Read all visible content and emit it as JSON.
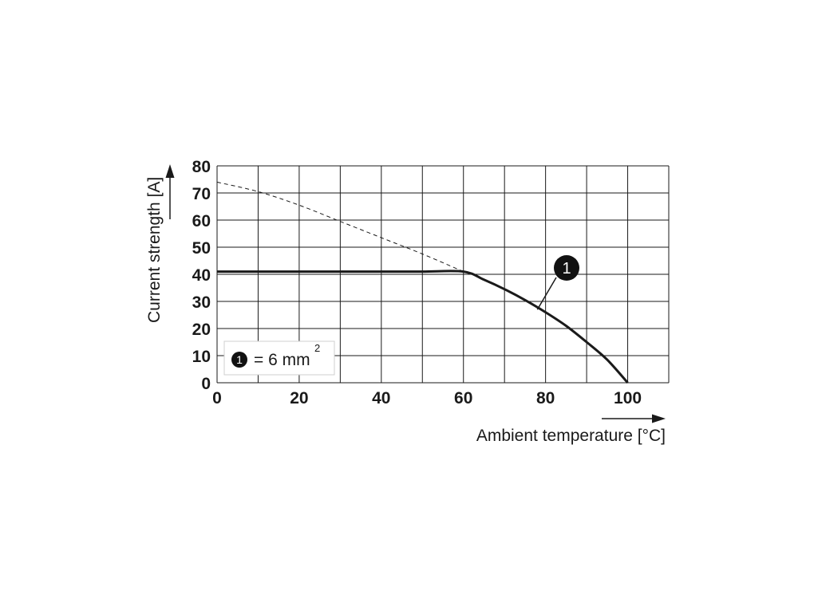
{
  "chart_data": {
    "type": "line",
    "xlabel": "Ambient temperature [°C]",
    "ylabel": "Current strength [A]",
    "xlim": [
      0,
      110
    ],
    "ylim": [
      0,
      80
    ],
    "x_ticks": [
      "0",
      "20",
      "40",
      "60",
      "80",
      "100"
    ],
    "y_ticks": [
      "0",
      "10",
      "20",
      "30",
      "40",
      "50",
      "60",
      "70",
      "80"
    ],
    "x_grid_step": 10,
    "y_grid_step": 10,
    "grid": true,
    "series": [
      {
        "name": "1",
        "style": "solid",
        "x": [
          0,
          10,
          20,
          30,
          40,
          50,
          60,
          65,
          70,
          75,
          80,
          85,
          90,
          95,
          100
        ],
        "y": [
          41,
          41,
          41,
          41,
          41,
          41,
          41,
          38,
          34.5,
          30.5,
          26,
          21,
          15,
          8.5,
          0
        ]
      },
      {
        "style": "dashed",
        "x": [
          0,
          10,
          20,
          30,
          40,
          50,
          60
        ],
        "y": [
          74,
          70.5,
          65.5,
          59.5,
          53.5,
          47.5,
          41
        ]
      }
    ],
    "annotations": [
      {
        "label": "1",
        "target_x": 78,
        "target_y": 27
      }
    ],
    "legend": {
      "marker": "1",
      "text": "= 6 mm",
      "superscript": "2",
      "placement": "bottom-left"
    },
    "colors": {
      "line": "#1a1a1a",
      "grid": "#1a1a1a",
      "marker_fill": "#111111"
    }
  }
}
